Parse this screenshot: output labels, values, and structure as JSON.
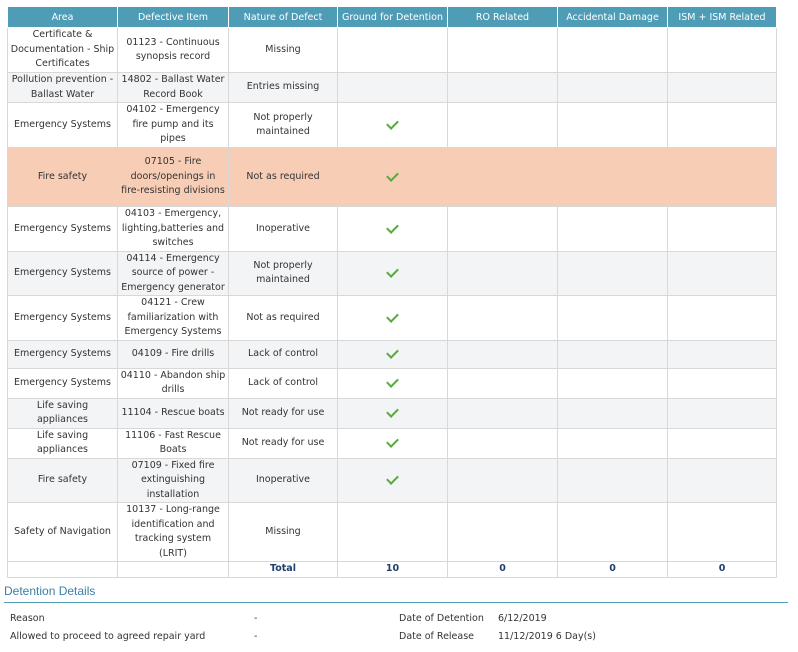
{
  "columns": [
    "Area",
    "Defective Item",
    "Nature of Defect",
    "Ground for Detention",
    "RO Related",
    "Accidental Damage",
    "ISM + ISM Related"
  ],
  "rows": [
    {
      "area": "Certificate & Documentation - Ship Certificates",
      "item": "01123 - Continuous synopsis record",
      "nature": "Missing",
      "ground": false,
      "highlight": false
    },
    {
      "area": "Pollution prevention - Ballast Water",
      "item": "14802 - Ballast Water Record Book",
      "nature": "Entries missing",
      "ground": false,
      "highlight": false
    },
    {
      "area": "Emergency Systems",
      "item": "04102 - Emergency fire pump and its pipes",
      "nature": "Not properly maintained",
      "ground": true,
      "highlight": false
    },
    {
      "area": "Fire safety",
      "item": "07105 - Fire doors/openings in fire-resisting divisions",
      "nature": "Not as required",
      "ground": true,
      "highlight": true
    },
    {
      "area": "Emergency Systems",
      "item": "04103 - Emergency, lighting,batteries and switches",
      "nature": "Inoperative",
      "ground": true,
      "highlight": false
    },
    {
      "area": "Emergency Systems",
      "item": "04114 - Emergency source of power - Emergency generator",
      "nature": "Not properly maintained",
      "ground": true,
      "highlight": false
    },
    {
      "area": "Emergency Systems",
      "item": "04121 - Crew familiarization with Emergency Systems",
      "nature": "Not as required",
      "ground": true,
      "highlight": false
    },
    {
      "area": "Emergency Systems",
      "item": "04109 - Fire drills",
      "nature": "Lack of control",
      "ground": true,
      "highlight": false
    },
    {
      "area": "Emergency Systems",
      "item": "04110 - Abandon ship drills",
      "nature": "Lack of control",
      "ground": true,
      "highlight": false
    },
    {
      "area": "Life saving appliances",
      "item": "11104 - Rescue boats",
      "nature": "Not ready for use",
      "ground": true,
      "highlight": false
    },
    {
      "area": "Life saving appliances",
      "item": "11106 - Fast Rescue Boats",
      "nature": "Not ready for use",
      "ground": true,
      "highlight": false
    },
    {
      "area": "Fire safety",
      "item": "07109 - Fixed fire extinguishing installation",
      "nature": "Inoperative",
      "ground": true,
      "highlight": false
    },
    {
      "area": "Safety of Navigation",
      "item": "10137 - Long-range identification and tracking system (LRIT)",
      "nature": "Missing",
      "ground": false,
      "highlight": false
    }
  ],
  "row_heights": [
    45,
    30,
    45,
    59,
    43,
    44,
    44,
    28,
    29,
    30,
    30,
    44,
    58
  ],
  "total": {
    "label": "Total",
    "ground": "10",
    "ro": "0",
    "accidental": "0",
    "ism": "0"
  },
  "check_icon": "check-icon",
  "colors": {
    "header": "#4f9cb7",
    "highlight": "#f7cdb6",
    "check": "#5aa93c",
    "total_text": "#1f3f6e"
  },
  "detention": {
    "title": "Detention Details",
    "reason_label": "Reason",
    "reason_value": "-",
    "allowed_label": "Allowed to proceed to agreed repair yard",
    "allowed_value": "-",
    "date_detention_label": "Date of Detention",
    "date_detention_value": "6/12/2019",
    "date_release_label": "Date of Release",
    "date_release_value": "11/12/2019 6 Day(s)"
  }
}
